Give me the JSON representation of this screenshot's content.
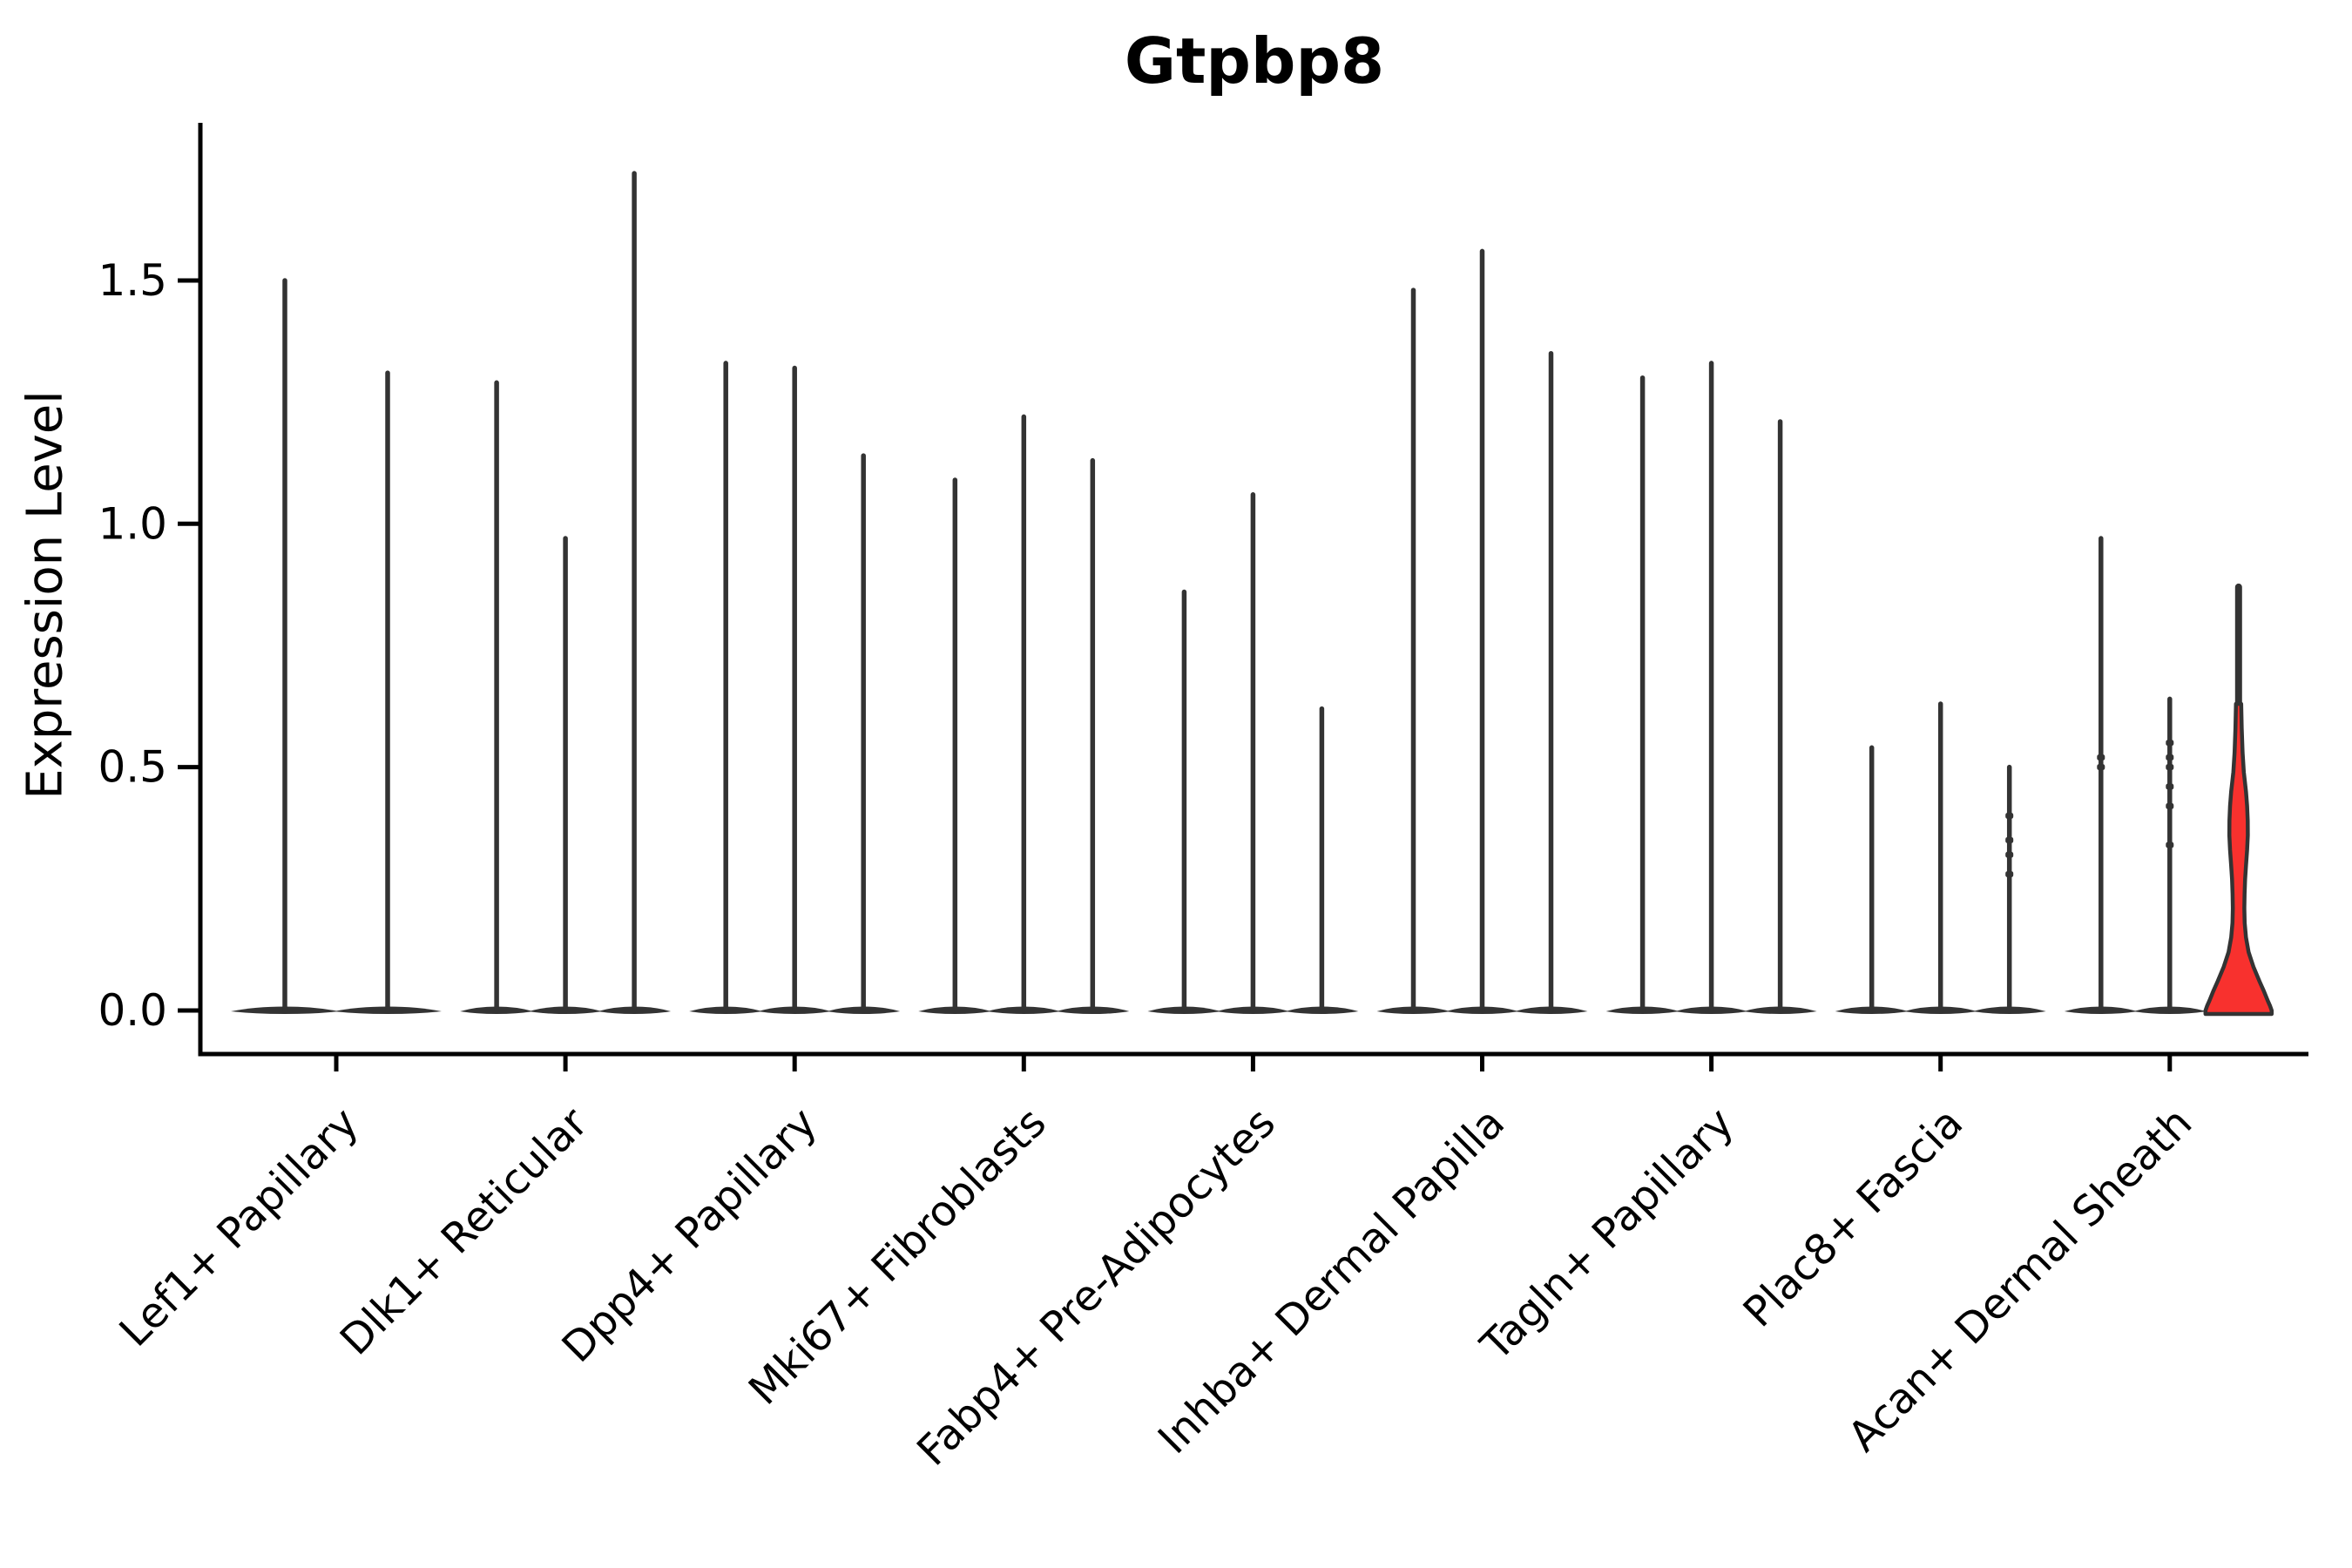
{
  "title": "Gtpbp8",
  "ylabel": "Expression Level",
  "colors": {
    "background": "#ffffff",
    "axis": "#000000",
    "text": "#000000",
    "violin_stroke": "#333333",
    "highlight_fill": "#f8312e"
  },
  "chart_data": {
    "type": "violin",
    "title": "Gtpbp8",
    "ylabel": "Expression Level",
    "xlabel": "",
    "grid": false,
    "legend": null,
    "ylim": [
      -0.09,
      1.82
    ],
    "yticks": [
      1.5,
      1.0,
      0.5,
      0.0
    ],
    "ytick_labels": [
      "1.5",
      "1.0",
      "0.5",
      "0.0"
    ],
    "categories": [
      "Lef1+ Papillary",
      "Dlk1+ Reticular",
      "Dpp4+ Papillary",
      "Mki67+ Fibroblasts",
      "Fabp4+ Pre-Adipocytes",
      "Inhba+ Dermal Papilla",
      "Tagln+ Papillary",
      "Plac8+ Fascia",
      "Acan+ Dermal Sheath"
    ],
    "description": "Violin plot of Gtpbp8 expression; most violins collapse to a thin spike (max expressed cell) over a flat base at 0; the last violin of Acan+ Dermal Sheath is filled red with visible density bulges.",
    "groups": [
      {
        "category": "Lef1+ Papillary",
        "violins": [
          {
            "max": 1.5
          },
          {
            "max": 1.31
          }
        ]
      },
      {
        "category": "Dlk1+ Reticular",
        "violins": [
          {
            "max": 1.29
          },
          {
            "max": 0.97
          },
          {
            "max": 1.72
          }
        ]
      },
      {
        "category": "Dpp4+ Papillary",
        "violins": [
          {
            "max": 1.33
          },
          {
            "max": 1.32
          },
          {
            "max": 1.14
          }
        ]
      },
      {
        "category": "Mki67+ Fibroblasts",
        "violins": [
          {
            "max": 1.09
          },
          {
            "max": 1.22
          },
          {
            "max": 1.13
          }
        ]
      },
      {
        "category": "Fabp4+ Pre-Adipocytes",
        "violins": [
          {
            "max": 0.86
          },
          {
            "max": 1.06
          },
          {
            "max": 0.62
          }
        ]
      },
      {
        "category": "Inhba+ Dermal Papilla",
        "violins": [
          {
            "max": 1.48
          },
          {
            "max": 1.56
          },
          {
            "max": 1.35
          }
        ]
      },
      {
        "category": "Tagln+ Papillary",
        "violins": [
          {
            "max": 1.3
          },
          {
            "max": 1.33
          },
          {
            "max": 1.21
          }
        ]
      },
      {
        "category": "Plac8+ Fascia",
        "violins": [
          {
            "max": 0.54
          },
          {
            "max": 0.63
          },
          {
            "max": 0.5,
            "points": [
              0.4,
              0.35,
              0.32,
              0.28
            ]
          }
        ]
      },
      {
        "category": "Acan+ Dermal Sheath",
        "violins": [
          {
            "max": 0.97,
            "points": [
              0.52,
              0.5
            ]
          },
          {
            "max": 0.64,
            "points": [
              0.55,
              0.52,
              0.5,
              0.46,
              0.42,
              0.34
            ]
          },
          {
            "max": 0.87,
            "filled": true,
            "fill_color": "#f8312e",
            "profile": [
              [
                0.63,
                3.0
              ],
              [
                0.58,
                3.6
              ],
              [
                0.53,
                4.6
              ],
              [
                0.49,
                6.0
              ],
              [
                0.45,
                8.5
              ],
              [
                0.42,
                9.8
              ],
              [
                0.39,
                10.5
              ],
              [
                0.36,
                10.6
              ],
              [
                0.33,
                9.8
              ],
              [
                0.3,
                8.6
              ],
              [
                0.27,
                7.5
              ],
              [
                0.24,
                6.9
              ],
              [
                0.21,
                6.6
              ],
              [
                0.18,
                7.0
              ],
              [
                0.15,
                8.5
              ],
              [
                0.12,
                11.5
              ],
              [
                0.09,
                17.0
              ],
              [
                0.06,
                24.0
              ],
              [
                0.04,
                29.0
              ],
              [
                0.02,
                33.5
              ],
              [
                0.01,
                36.0
              ],
              [
                0.0,
                38.0
              ]
            ]
          }
        ]
      }
    ]
  }
}
